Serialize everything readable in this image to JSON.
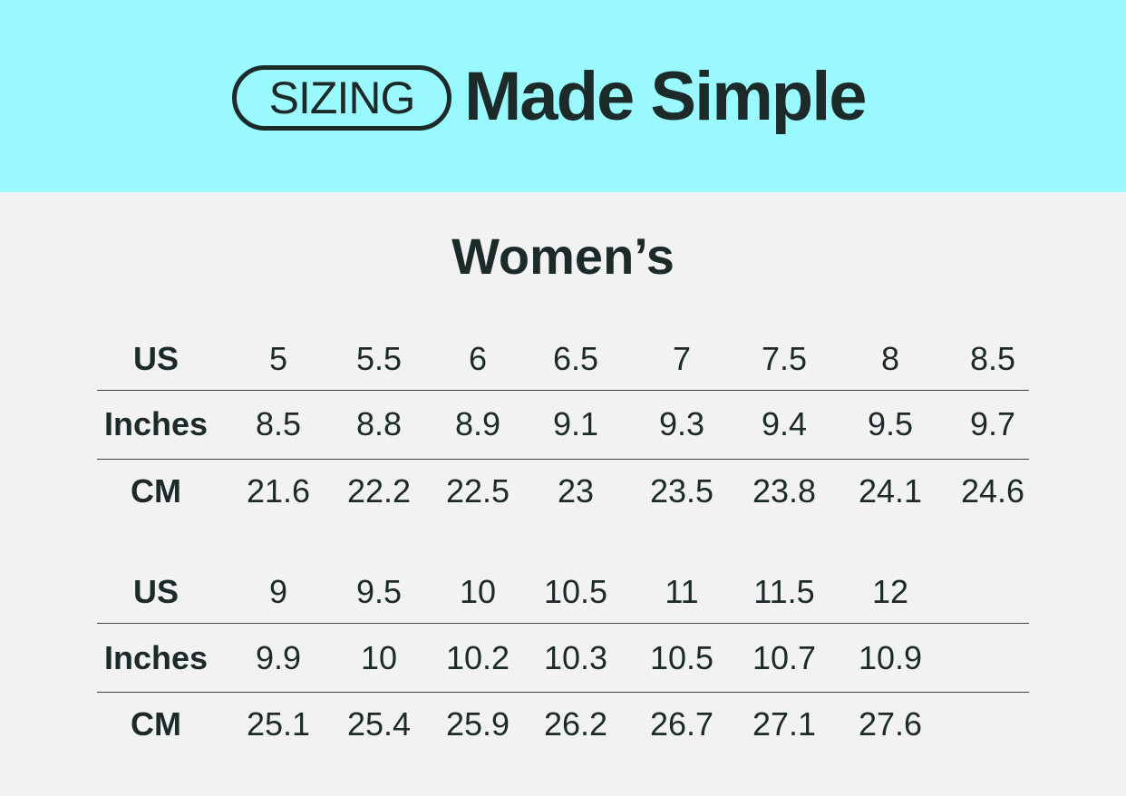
{
  "header": {
    "badge": "SIZING",
    "tagline": "Made Simple",
    "background": "#9af8ff",
    "text_color": "#1c2a2a"
  },
  "title": "Women’s",
  "tables": [
    {
      "rows": [
        {
          "label": "US",
          "values": [
            "5",
            "5.5",
            "6",
            "6.5",
            "7",
            "7.5",
            "8",
            "8.5"
          ]
        },
        {
          "label": "Inches",
          "values": [
            "8.5",
            "8.8",
            "8.9",
            "9.1",
            "9.3",
            "9.4",
            "9.5",
            "9.7"
          ]
        },
        {
          "label": "CM",
          "values": [
            "21.6",
            "22.2",
            "22.5",
            "23",
            "23.5",
            "23.8",
            "24.1",
            "24.6"
          ]
        }
      ]
    },
    {
      "rows": [
        {
          "label": "US",
          "values": [
            "9",
            "9.5",
            "10",
            "10.5",
            "11",
            "11.5",
            "12"
          ]
        },
        {
          "label": "Inches",
          "values": [
            "9.9",
            "10",
            "10.2",
            "10.3",
            "10.5",
            "10.7",
            "10.9"
          ]
        },
        {
          "label": "CM",
          "values": [
            "25.1",
            "25.4",
            "25.9",
            "26.2",
            "26.7",
            "27.1",
            "27.6"
          ]
        }
      ]
    }
  ]
}
